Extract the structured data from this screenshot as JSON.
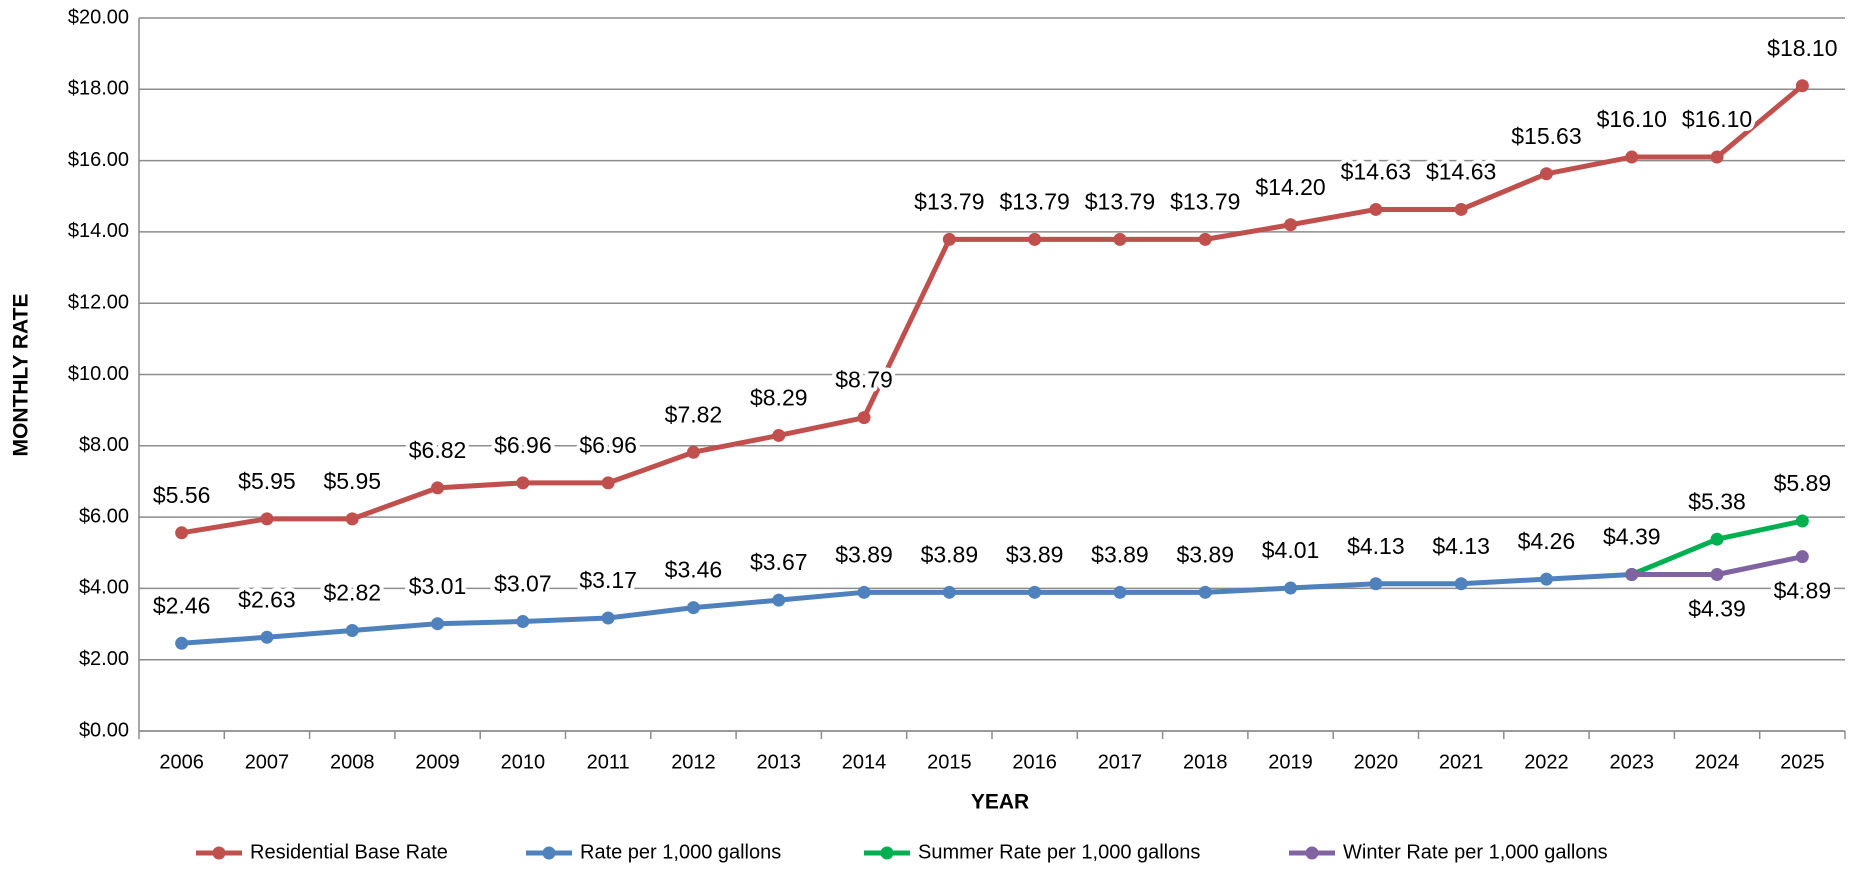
{
  "chart_data": {
    "type": "line",
    "x_label": "YEAR",
    "y_label": "MONTHLY RATE",
    "categories": [
      "2006",
      "2007",
      "2008",
      "2009",
      "2010",
      "2011",
      "2012",
      "2013",
      "2014",
      "2015",
      "2016",
      "2017",
      "2018",
      "2019",
      "2020",
      "2021",
      "2022",
      "2023",
      "2024",
      "2025"
    ],
    "ylim": [
      0,
      20
    ],
    "yticks": [
      {
        "value": 0,
        "label": "$0.00"
      },
      {
        "value": 2,
        "label": "$2.00"
      },
      {
        "value": 4,
        "label": "$4.00"
      },
      {
        "value": 6,
        "label": "$6.00"
      },
      {
        "value": 8,
        "label": "$8.00"
      },
      {
        "value": 10,
        "label": "$10.00"
      },
      {
        "value": 12,
        "label": "$12.00"
      },
      {
        "value": 14,
        "label": "$14.00"
      },
      {
        "value": 16,
        "label": "$16.00"
      },
      {
        "value": 18,
        "label": "$18.00"
      },
      {
        "value": 20,
        "label": "$20.00"
      }
    ],
    "grid": true,
    "legend": "bottom",
    "series": [
      {
        "name": "Residential Base Rate",
        "color": "#c0504d",
        "label_position": "above",
        "values": [
          5.56,
          5.95,
          5.95,
          6.82,
          6.96,
          6.96,
          7.82,
          8.29,
          8.79,
          13.79,
          13.79,
          13.79,
          13.79,
          14.2,
          14.63,
          14.63,
          15.63,
          16.1,
          16.1,
          18.1
        ],
        "value_labels": [
          "$5.56",
          "$5.95",
          "$5.95",
          "$6.82",
          "$6.96",
          "$6.96",
          "$7.82",
          "$8.29",
          "$8.79",
          "$13.79",
          "$13.79",
          "$13.79",
          "$13.79",
          "$14.20",
          "$14.63",
          "$14.63",
          "$15.63",
          "$16.10",
          "$16.10",
          "$18.10"
        ]
      },
      {
        "name": "Rate per 1,000 gallons",
        "color": "#4f81bd",
        "label_position": "above",
        "values": [
          2.46,
          2.63,
          2.82,
          3.01,
          3.07,
          3.17,
          3.46,
          3.67,
          3.89,
          3.89,
          3.89,
          3.89,
          3.89,
          4.01,
          4.13,
          4.13,
          4.26,
          4.39,
          null,
          null
        ],
        "value_labels": [
          "$2.46",
          "$2.63",
          "$2.82",
          "$3.01",
          "$3.07",
          "$3.17",
          "$3.46",
          "$3.67",
          "$3.89",
          "$3.89",
          "$3.89",
          "$3.89",
          "$3.89",
          "$4.01",
          "$4.13",
          "$4.13",
          "$4.26",
          "$4.39",
          null,
          null
        ]
      },
      {
        "name": "Summer Rate per 1,000 gallons",
        "color": "#00b050",
        "label_position": "above",
        "values": [
          null,
          null,
          null,
          null,
          null,
          null,
          null,
          null,
          null,
          null,
          null,
          null,
          null,
          null,
          null,
          null,
          null,
          4.39,
          5.38,
          5.89
        ],
        "value_labels": [
          null,
          null,
          null,
          null,
          null,
          null,
          null,
          null,
          null,
          null,
          null,
          null,
          null,
          null,
          null,
          null,
          null,
          null,
          "$5.38",
          "$5.89"
        ]
      },
      {
        "name": "Winter Rate per 1,000 gallons",
        "color": "#8064a2",
        "label_position": "below",
        "values": [
          null,
          null,
          null,
          null,
          null,
          null,
          null,
          null,
          null,
          null,
          null,
          null,
          null,
          null,
          null,
          null,
          null,
          4.39,
          4.39,
          4.89
        ],
        "value_labels": [
          null,
          null,
          null,
          null,
          null,
          null,
          null,
          null,
          null,
          null,
          null,
          null,
          null,
          null,
          null,
          null,
          null,
          null,
          "$4.39",
          "$4.89"
        ]
      }
    ]
  }
}
